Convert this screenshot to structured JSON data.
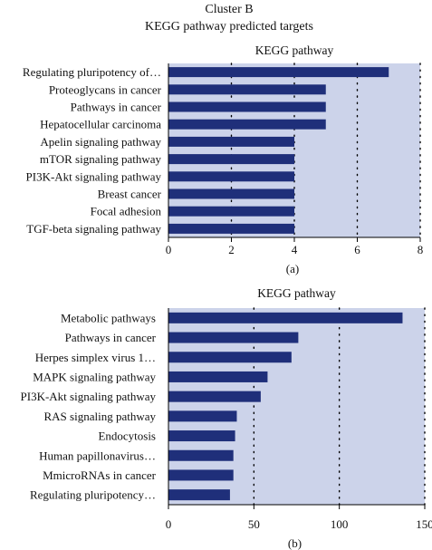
{
  "header": {
    "line1": "Cluster B",
    "line2": "KEGG pathway predicted targets"
  },
  "colors": {
    "bar": "#1f2f7a",
    "plot_bg": "#ccd3ea",
    "grid": "#000000"
  },
  "chart_data": [
    {
      "type": "bar",
      "orientation": "horizontal",
      "title": "KEGG pathway",
      "panel_label": "(a)",
      "categories": [
        "Regulating pluripotency of…",
        "Proteoglycans in cancer",
        "Pathways in cancer",
        "Hepatocellular carcinoma",
        "Apelin signaling pathway",
        "mTOR signaling pathway",
        "PI3K-Akt signaling pathway",
        "Breast cancer",
        "Focal adhesion",
        "TGF-beta signaling pathway"
      ],
      "values": [
        7,
        5,
        5,
        5,
        4,
        4,
        4,
        4,
        4,
        4
      ],
      "xlim": [
        0,
        8
      ],
      "xticks": [
        "0",
        "2",
        "4",
        "6",
        "8"
      ],
      "grid": "vertical dotted"
    },
    {
      "type": "bar",
      "orientation": "horizontal",
      "title": "KEGG pathway",
      "panel_label": "(b)",
      "categories": [
        "Metabolic pathways",
        "Pathways in cancer",
        "Herpes simplex virus 1…",
        "MAPK signaling pathway",
        "PI3K-Akt signaling pathway",
        "RAS signaling pathway",
        "Endocytosis",
        "Human papillonavirus…",
        "MmicroRNAs in cancer",
        "Regulating pluripotency…"
      ],
      "values": [
        137,
        76,
        72,
        58,
        54,
        40,
        39,
        38,
        38,
        36
      ],
      "xlim": [
        0,
        150
      ],
      "xticks": [
        "0",
        "50",
        "100",
        "150"
      ],
      "grid": "vertical dotted"
    }
  ]
}
